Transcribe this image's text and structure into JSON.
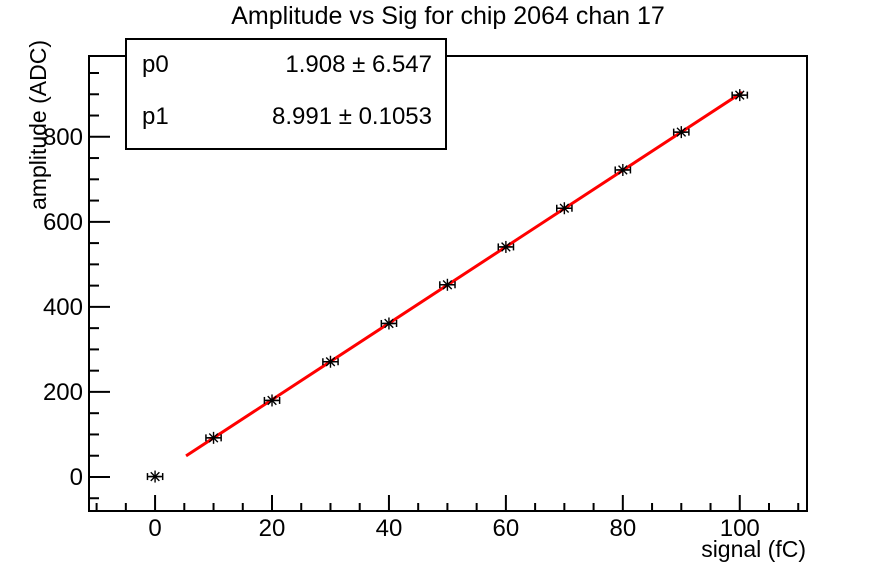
{
  "chart_data": {
    "type": "scatter",
    "title": "Amplitude vs Sig for chip 2064 chan 17",
    "xlabel": "signal (fC)",
    "ylabel": "amplitude (ADC)",
    "xlim": [
      -11.3,
      111.5
    ],
    "ylim": [
      -80,
      990
    ],
    "x_major_ticks": [
      0,
      20,
      40,
      60,
      80,
      100
    ],
    "x_minor_step": 5,
    "x_minor_range": [
      -10,
      110
    ],
    "y_major_ticks": [
      0,
      200,
      400,
      600,
      800
    ],
    "y_minor_step": 50,
    "y_minor_range": [
      -50,
      950
    ],
    "grid": false,
    "points": {
      "x": [
        0,
        10,
        20,
        30,
        40,
        50,
        60,
        70,
        80,
        90,
        100
      ],
      "y": [
        1,
        92,
        180,
        271,
        361,
        452,
        541,
        632,
        722,
        811,
        898
      ],
      "xerr": 1.3,
      "marker": "asterisk-with-x-error-bar",
      "color": "#000000"
    },
    "fit": {
      "p0": 1.908,
      "p1": 8.991,
      "x_range": [
        5.3,
        100.4
      ],
      "color": "#ff0000"
    }
  },
  "stats_box": {
    "rows": [
      {
        "label": "p0",
        "value": "1.908 ± 6.547"
      },
      {
        "label": "p1",
        "value": "8.991 ± 0.1053"
      }
    ]
  }
}
